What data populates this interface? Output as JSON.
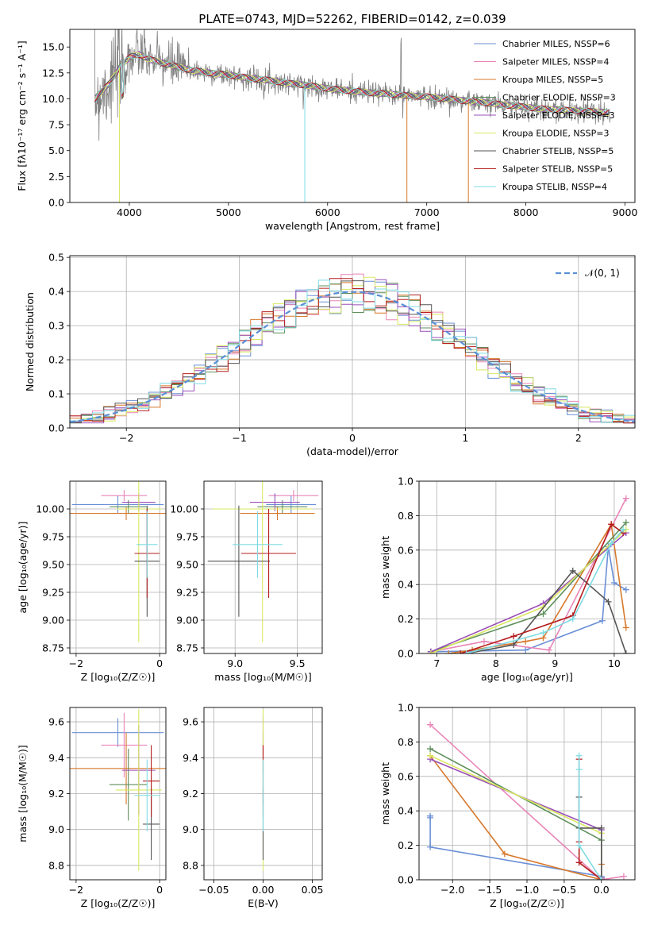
{
  "colors": {
    "series": [
      "#6a8fd6",
      "#e985b8",
      "#d7792c",
      "#5f8f5c",
      "#9a4fb8",
      "#d9e860",
      "#555555",
      "#b51d1d",
      "#7fdbe3"
    ],
    "gauss": "#5a8fd6"
  },
  "chart_data": [
    {
      "id": "spectrum",
      "type": "line",
      "title": "PLATE=0743, MJD=52262, FIBERID=0142, z=0.039",
      "xlabel": "wavelength [Angstrom, rest frame]",
      "ylabel": "Flux [fλ10⁻¹⁷ erg cm⁻² s⁻¹ A⁻¹]",
      "xlim": [
        3400,
        9100
      ],
      "ylim": [
        0,
        16.7
      ],
      "xticks": [
        4000,
        5000,
        6000,
        7000,
        8000,
        9000
      ],
      "yticks": [
        0.0,
        2.5,
        5.0,
        7.5,
        10.0,
        12.5,
        15.0
      ],
      "legend_position": "upper-right",
      "legend": [
        "Chabrier MILES, NSSP=6",
        "Salpeter MILES, NSSP=4",
        "Kroupa MILES, NSSP=5",
        "Chabrier ELODIE, NSSP=3",
        "Salpeter ELODIE, NSSP=3",
        "Kroupa ELODIE, NSSP=3",
        "Chabrier STELIB, NSSP=5",
        "Salpeter STELIB, NSSP=5",
        "Kroupa STELIB, NSSP=4"
      ],
      "continuum": {
        "x": [
          3650,
          3700,
          3800,
          3900,
          4000,
          4100,
          4200,
          4400,
          4600,
          4800,
          5000,
          5200,
          5400,
          5600,
          5800,
          6000,
          6200,
          6400,
          6600,
          6800,
          7000,
          7200,
          7400,
          7600,
          7800,
          8000,
          8200,
          8400,
          8600,
          8800
        ],
        "y": [
          10.0,
          10.5,
          11.5,
          13.0,
          14.0,
          14.3,
          13.8,
          13.3,
          12.8,
          12.5,
          12.3,
          12.0,
          11.8,
          11.5,
          11.3,
          11.0,
          10.8,
          10.6,
          10.5,
          10.3,
          10.2,
          10.0,
          9.8,
          9.6,
          9.4,
          9.2,
          9.0,
          8.9,
          8.8,
          8.7
        ]
      }
    },
    {
      "id": "residuals",
      "type": "bar",
      "xlabel": "(data-model)/error",
      "ylabel": "Normed distribution",
      "xlim": [
        -2.5,
        2.5
      ],
      "ylim": [
        0,
        0.505
      ],
      "xticks": [
        -2,
        -1,
        0,
        1,
        2
      ],
      "yticks": [
        0.0,
        0.1,
        0.2,
        0.3,
        0.4,
        0.5
      ],
      "legend": [
        "𝒩(0, 1)"
      ],
      "legend_position": "upper-right",
      "grid": true
    },
    {
      "id": "age-vs-Z",
      "type": "scatter",
      "xlabel": "Z [log₁₀(Z/Z☉)]",
      "ylabel": "age  [log₁₀(age/yr)]",
      "xlim": [
        -2.15,
        0.15
      ],
      "ylim": [
        8.7,
        10.25
      ],
      "xticks": [
        -2,
        0
      ],
      "yticks": [
        8.75,
        9.0,
        9.25,
        9.5,
        9.75,
        10.0
      ],
      "grid": true,
      "points": [
        {
          "series": 0,
          "x": -1.0,
          "y": 10.04,
          "xerr": 1.1,
          "yerr": 0.08
        },
        {
          "series": 1,
          "x": -0.85,
          "y": 10.12,
          "xerr": 0.55,
          "yerr": 0.05
        },
        {
          "series": 2,
          "x": -0.8,
          "y": 9.96,
          "xerr": 1.35,
          "yerr": 0.06
        },
        {
          "series": 3,
          "x": -0.75,
          "y": 10.02,
          "xerr": 0.45,
          "yerr": 0.06
        },
        {
          "series": 4,
          "x": -0.5,
          "y": 10.06,
          "xerr": 0.4,
          "yerr": 0.08
        },
        {
          "series": 5,
          "x": -0.5,
          "y": 10.0,
          "xerr": 0.55,
          "yerr": 1.2
        },
        {
          "series": 6,
          "x": -0.3,
          "y": 9.53,
          "xerr": 0.3,
          "yerr": 0.5
        },
        {
          "series": 7,
          "x": -0.3,
          "y": 9.6,
          "xerr": 0.3,
          "yerr": 0.4
        },
        {
          "series": 8,
          "x": -0.3,
          "y": 9.68,
          "xerr": 0.25,
          "yerr": 0.3
        }
      ]
    },
    {
      "id": "age-vs-mass",
      "type": "scatter",
      "xlabel": "mass [log₁₀(M/M☉)]",
      "ylabel": "",
      "xlim": [
        8.75,
        9.7
      ],
      "ylim": [
        8.7,
        10.25
      ],
      "xticks": [
        9.0,
        9.5
      ],
      "yticks": [
        8.75,
        9.0,
        9.25,
        9.5,
        9.75,
        10.0
      ],
      "grid": true,
      "points": [
        {
          "series": 0,
          "x": 9.45,
          "y": 10.04,
          "xerr": 0.2,
          "yerr": 0.08
        },
        {
          "series": 1,
          "x": 9.47,
          "y": 10.12,
          "xerr": 0.2,
          "yerr": 0.05
        },
        {
          "series": 2,
          "x": 9.34,
          "y": 9.96,
          "xerr": 0.3,
          "yerr": 0.06
        },
        {
          "series": 3,
          "x": 9.38,
          "y": 10.02,
          "xerr": 0.2,
          "yerr": 0.06
        },
        {
          "series": 4,
          "x": 9.32,
          "y": 10.06,
          "xerr": 0.2,
          "yerr": 0.08
        },
        {
          "series": 5,
          "x": 9.22,
          "y": 10.0,
          "xerr": 0.4,
          "yerr": 1.2
        },
        {
          "series": 6,
          "x": 9.03,
          "y": 9.53,
          "xerr": 0.25,
          "yerr": 0.5
        },
        {
          "series": 7,
          "x": 9.27,
          "y": 9.6,
          "xerr": 0.22,
          "yerr": 0.4
        },
        {
          "series": 8,
          "x": 9.18,
          "y": 9.68,
          "xerr": 0.2,
          "yerr": 0.3
        }
      ]
    },
    {
      "id": "weight-vs-age",
      "type": "line",
      "xlabel": "age  [log₁₀(age/yr)]",
      "ylabel": "mass weight",
      "xlim": [
        6.7,
        10.35
      ],
      "ylim": [
        0,
        1.0
      ],
      "xticks": [
        7,
        8,
        9,
        10
      ],
      "yticks": [
        0.0,
        0.2,
        0.4,
        0.6,
        0.8,
        1.0
      ],
      "grid": true,
      "series": [
        {
          "series": 0,
          "x": [
            6.9,
            8.5,
            9.8,
            9.9,
            10.0,
            10.2
          ],
          "y": [
            0.01,
            0.02,
            0.19,
            0.62,
            0.41,
            0.37
          ]
        },
        {
          "series": 1,
          "x": [
            6.9,
            7.8,
            8.9,
            10.2
          ],
          "y": [
            0.01,
            0.07,
            0.02,
            0.9
          ]
        },
        {
          "series": 2,
          "x": [
            7.2,
            7.6,
            8.5,
            8.8,
            9.95,
            10.2
          ],
          "y": [
            0.0,
            0.02,
            0.07,
            0.09,
            0.75,
            0.15
          ]
        },
        {
          "series": 3,
          "x": [
            6.9,
            8.8,
            10.2
          ],
          "y": [
            0.01,
            0.23,
            0.76
          ]
        },
        {
          "series": 4,
          "x": [
            6.9,
            8.8,
            10.2
          ],
          "y": [
            0.01,
            0.29,
            0.7
          ]
        },
        {
          "series": 5,
          "x": [
            6.9,
            8.8,
            10.2
          ],
          "y": [
            0.0,
            0.27,
            0.72
          ]
        },
        {
          "series": 6,
          "x": [
            7.5,
            8.3,
            9.3,
            9.9,
            10.2
          ],
          "y": [
            0.0,
            0.05,
            0.48,
            0.3,
            0.0
          ]
        },
        {
          "series": 7,
          "x": [
            7.4,
            8.3,
            9.3,
            9.95,
            10.15
          ],
          "y": [
            0.0,
            0.1,
            0.22,
            0.75,
            0.7
          ]
        },
        {
          "series": 8,
          "x": [
            7.5,
            8.8,
            9.3,
            9.95,
            10.15
          ],
          "y": [
            0.0,
            0.12,
            0.2,
            0.64,
            0.72
          ]
        }
      ]
    },
    {
      "id": "mass-vs-Z",
      "type": "scatter",
      "xlabel": "Z [log₁₀(Z/Z☉)]",
      "ylabel": "mass [log₁₀(M/M☉)]",
      "xlim": [
        -2.15,
        0.15
      ],
      "ylim": [
        8.72,
        9.68
      ],
      "xticks": [
        -2,
        0
      ],
      "yticks": [
        8.8,
        9.0,
        9.2,
        9.4,
        9.6
      ],
      "grid": true,
      "points": [
        {
          "series": 0,
          "x": -1.0,
          "y": 9.54,
          "xerr": 1.1,
          "yerr": 0.08
        },
        {
          "series": 1,
          "x": -0.85,
          "y": 9.47,
          "xerr": 0.55,
          "yerr": 0.18
        },
        {
          "series": 2,
          "x": -0.8,
          "y": 9.34,
          "xerr": 1.35,
          "yerr": 0.2
        },
        {
          "series": 3,
          "x": -0.75,
          "y": 9.25,
          "xerr": 0.45,
          "yerr": 0.2
        },
        {
          "series": 4,
          "x": -0.5,
          "y": 9.33,
          "xerr": 0.4,
          "yerr": 0.25
        },
        {
          "series": 5,
          "x": -0.5,
          "y": 9.22,
          "xerr": 0.55,
          "yerr": 0.45
        },
        {
          "series": 6,
          "x": -0.2,
          "y": 9.03,
          "xerr": 0.2,
          "yerr": 0.2
        },
        {
          "series": 7,
          "x": -0.2,
          "y": 9.27,
          "xerr": 0.2,
          "yerr": 0.2
        },
        {
          "series": 8,
          "x": -0.3,
          "y": 9.19,
          "xerr": 0.3,
          "yerr": 0.2
        }
      ]
    },
    {
      "id": "mass-vs-ebv",
      "type": "scatter",
      "xlabel": "E(B-V)",
      "ylabel": "",
      "xlim": [
        -0.06,
        0.06
      ],
      "ylim": [
        8.72,
        9.68
      ],
      "xticks": [
        -0.05,
        0.0,
        0.05
      ],
      "xticklabels": [
        "−0.05",
        "0.00",
        "0.05"
      ],
      "yticks": [
        8.8,
        9.0,
        9.2,
        9.4,
        9.6
      ],
      "grid": true,
      "points": [
        {
          "series": 0,
          "x": 0.0,
          "y": 9.54,
          "xerr": 0,
          "yerr": 0.1
        },
        {
          "series": 1,
          "x": 0.0,
          "y": 9.47,
          "xerr": 0,
          "yerr": 0.15
        },
        {
          "series": 2,
          "x": 0.0,
          "y": 9.34,
          "xerr": 0,
          "yerr": 0.2
        },
        {
          "series": 5,
          "x": 0.0,
          "y": 9.22,
          "xerr": 0,
          "yerr": 0.45
        },
        {
          "series": 6,
          "x": 0.0,
          "y": 9.03,
          "xerr": 0,
          "yerr": 0.2
        },
        {
          "series": 7,
          "x": 0.0,
          "y": 9.27,
          "xerr": 0,
          "yerr": 0.2
        },
        {
          "series": 8,
          "x": 0.0,
          "y": 9.19,
          "xerr": 0,
          "yerr": 0.2
        }
      ]
    },
    {
      "id": "weight-vs-Z",
      "type": "line",
      "xlabel": "Z [log₁₀(Z/Z☉)]",
      "ylabel": "mass weight",
      "xlim": [
        -2.45,
        0.45
      ],
      "ylim": [
        0,
        1.0
      ],
      "xticks": [
        -2.0,
        -1.5,
        -1.0,
        -0.5,
        0.0
      ],
      "xticklabels": [
        "−2.0",
        "−1.5",
        "−1.0",
        "−0.5",
        "0.0"
      ],
      "yticks": [
        0.0,
        0.2,
        0.4,
        0.6,
        0.8,
        1.0
      ],
      "grid": true,
      "series": [
        {
          "series": 0,
          "x": [
            -2.3,
            -2.3,
            -2.3,
            0.0,
            0.0
          ],
          "y": [
            0.37,
            0.36,
            0.19,
            0.02,
            0.01
          ]
        },
        {
          "series": 1,
          "x": [
            -2.3,
            0.0,
            0.3
          ],
          "y": [
            0.9,
            0.0,
            0.02
          ]
        },
        {
          "series": 2,
          "x": [
            -2.3,
            -1.3,
            0.0,
            0.0
          ],
          "y": [
            0.72,
            0.15,
            0.0,
            0.09
          ]
        },
        {
          "series": 3,
          "x": [
            -2.3,
            0.0,
            0.0
          ],
          "y": [
            0.76,
            0.23,
            0.01
          ]
        },
        {
          "series": 4,
          "x": [
            -2.3,
            0.0,
            0.0
          ],
          "y": [
            0.7,
            0.29,
            0.01
          ]
        },
        {
          "series": 5,
          "x": [
            -2.3,
            0.0,
            0.0
          ],
          "y": [
            0.72,
            0.27,
            0.0
          ]
        },
        {
          "series": 6,
          "x": [
            -0.3,
            -0.3,
            0.0,
            0.0
          ],
          "y": [
            0.48,
            0.3,
            0.3,
            0.0
          ]
        },
        {
          "series": 7,
          "x": [
            -0.3,
            -0.3,
            -0.3,
            0.0
          ],
          "y": [
            0.7,
            0.22,
            0.1,
            0.0
          ]
        },
        {
          "series": 8,
          "x": [
            -0.3,
            -0.3,
            -0.3,
            0.0
          ],
          "y": [
            0.72,
            0.64,
            0.2,
            0.0
          ]
        }
      ]
    }
  ]
}
